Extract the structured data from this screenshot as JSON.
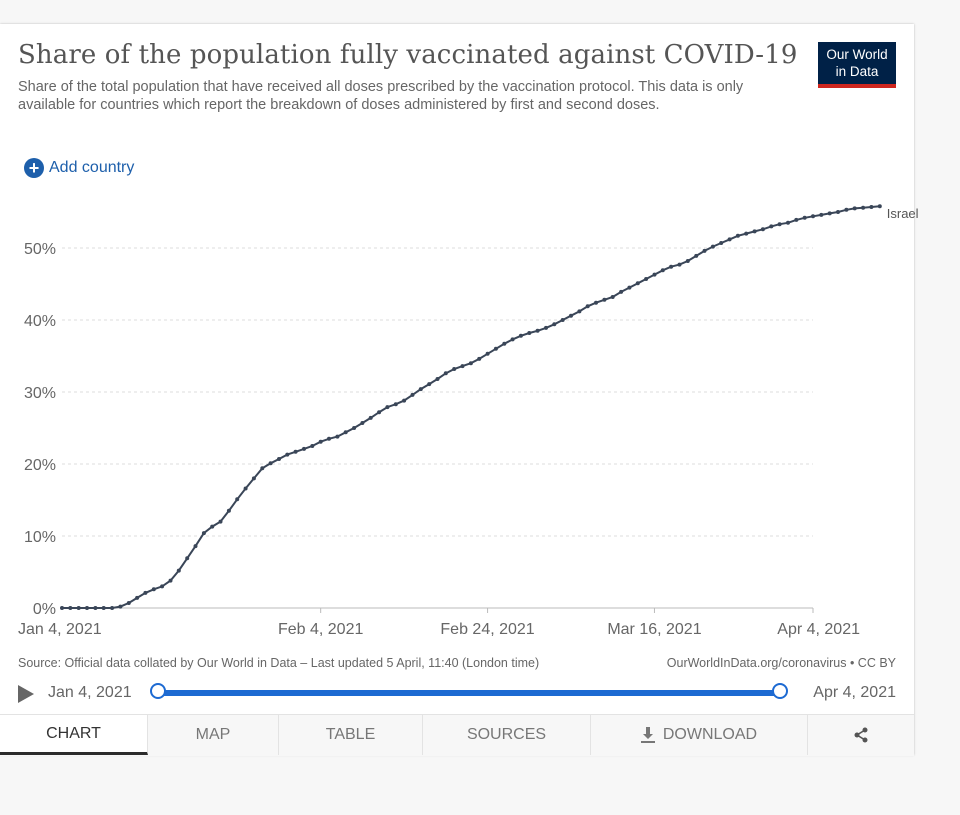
{
  "header": {
    "title": "Share of the population fully vaccinated against COVID-19",
    "subtitle": "Share of the total population that have received all doses prescribed by the vaccination protocol. This data is only available for countries which report the breakdown of doses administered by first and second doses.",
    "logo_line1": "Our World",
    "logo_line2": "in Data",
    "add_country_label": "Add country"
  },
  "footer": {
    "source": "Source: Official data collated by Our World in Data – Last updated 5 April, 11:40 (London time)",
    "url": "OurWorldInData.org/coronavirus • CC BY"
  },
  "timeline": {
    "start_label": "Jan 4, 2021",
    "end_label": "Apr 4, 2021"
  },
  "tabs": [
    {
      "label": "CHART",
      "active": true
    },
    {
      "label": "MAP"
    },
    {
      "label": "TABLE"
    },
    {
      "label": "SOURCES"
    },
    {
      "label": "DOWNLOAD"
    },
    {
      "label": ""
    }
  ],
  "colors": {
    "line": "#3a4658",
    "accent": "#1d6ad2",
    "logo_bg": "#002147",
    "logo_bar": "#ce261e"
  },
  "icons": [
    "plus-circle-icon",
    "play-icon",
    "download-icon",
    "share-icon"
  ],
  "chart_data": {
    "type": "line",
    "title": "Share of the population fully vaccinated against COVID-19",
    "xlabel": "",
    "ylabel": "",
    "ylim": [
      0,
      55
    ],
    "y_ticks": [
      0,
      10,
      20,
      30,
      40,
      50
    ],
    "y_tick_labels": [
      "0%",
      "10%",
      "20%",
      "30%",
      "40%",
      "50%"
    ],
    "x_tick_labels": [
      "Jan 4, 2021",
      "Feb 4, 2021",
      "Feb 24, 2021",
      "Mar 16, 2021",
      "Apr 4, 2021"
    ],
    "x_tick_days": [
      0,
      31,
      51,
      71,
      90
    ],
    "grid": "horizontal-dashed",
    "series": [
      {
        "name": "Israel",
        "x_start": "2021-01-04",
        "values": [
          0,
          0,
          0,
          0,
          0,
          0,
          0,
          0.2,
          0.7,
          1.4,
          2.1,
          2.6,
          3.0,
          3.8,
          5.2,
          6.9,
          8.6,
          10.4,
          11.3,
          12.0,
          13.5,
          15.1,
          16.6,
          18.0,
          19.4,
          20.1,
          20.7,
          21.3,
          21.7,
          22.1,
          22.5,
          23.1,
          23.5,
          23.8,
          24.4,
          25.0,
          25.7,
          26.4,
          27.2,
          27.9,
          28.3,
          28.8,
          29.6,
          30.4,
          31.1,
          31.8,
          32.6,
          33.2,
          33.6,
          34.0,
          34.6,
          35.3,
          36.0,
          36.7,
          37.3,
          37.8,
          38.2,
          38.5,
          38.9,
          39.4,
          40.0,
          40.6,
          41.2,
          41.9,
          42.4,
          42.8,
          43.2,
          43.9,
          44.5,
          45.1,
          45.7,
          46.3,
          46.9,
          47.4,
          47.7,
          48.2,
          48.9,
          49.6,
          50.2,
          50.7,
          51.2,
          51.7,
          52.0,
          52.3,
          52.6,
          53.0,
          53.3,
          53.5,
          53.9,
          54.2,
          54.4,
          54.6,
          54.8,
          55.0,
          55.3,
          55.5,
          55.6,
          55.7,
          55.8
        ]
      }
    ]
  }
}
